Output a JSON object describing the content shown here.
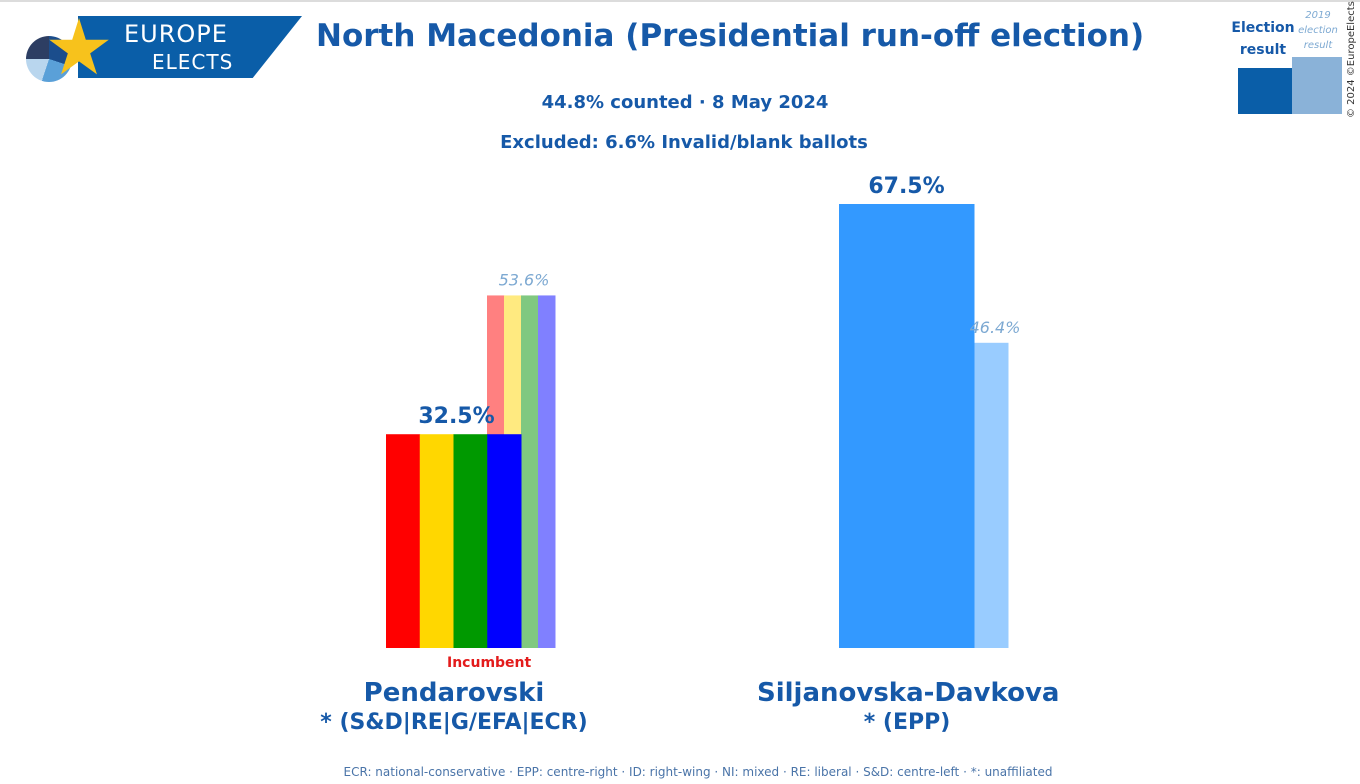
{
  "logo": {
    "line1": "EUROPE",
    "line2": "ELECTS"
  },
  "title": "North Macedonia (Presidential run-off election)",
  "subtitle": "44.8% counted · 8 May 2024",
  "excluded": "Excluded: 6.6% Invalid/blank ballots",
  "legend": {
    "current": "Election result",
    "previous": "2019 election result",
    "current_color": "#0a5ea8",
    "previous_color": "#8ab2d8"
  },
  "copyright": "© 2024 ©EuropeElects",
  "footnote": "ECR: national-conservative · EPP: centre-right · ID: right-wing · NI: mixed · RE: liberal · S&D: centre-left · *: unaffiliated",
  "chart_data": {
    "type": "bar",
    "ylim": [
      0,
      75
    ],
    "categories": [
      "Pendarovski",
      "Siljanovska-Davkova"
    ],
    "series": [
      {
        "name": "Election result",
        "values": [
          32.5,
          67.5
        ],
        "labels": [
          "32.5%",
          "67.5%"
        ]
      },
      {
        "name": "2019 election result",
        "values": [
          53.6,
          46.4
        ],
        "labels": [
          "53.6%",
          "46.4%"
        ]
      }
    ],
    "candidates": [
      {
        "name": "Pendarovski",
        "affiliation": "* (S&D|RE|G/EFA|ECR)",
        "badge": "Incumbent",
        "current": 32.5,
        "previous": 53.6,
        "current_colors": [
          "#ff0000",
          "#ffd700",
          "#009900",
          "#0000ff"
        ],
        "previous_colors": [
          "#ff8080",
          "#ffea80",
          "#80c880",
          "#8080ff"
        ]
      },
      {
        "name": "Siljanovska-Davkova",
        "affiliation": "* (EPP)",
        "current": 67.5,
        "previous": 46.4,
        "current_colors": [
          "#3399ff"
        ],
        "previous_colors": [
          "#99ccff"
        ]
      }
    ]
  }
}
